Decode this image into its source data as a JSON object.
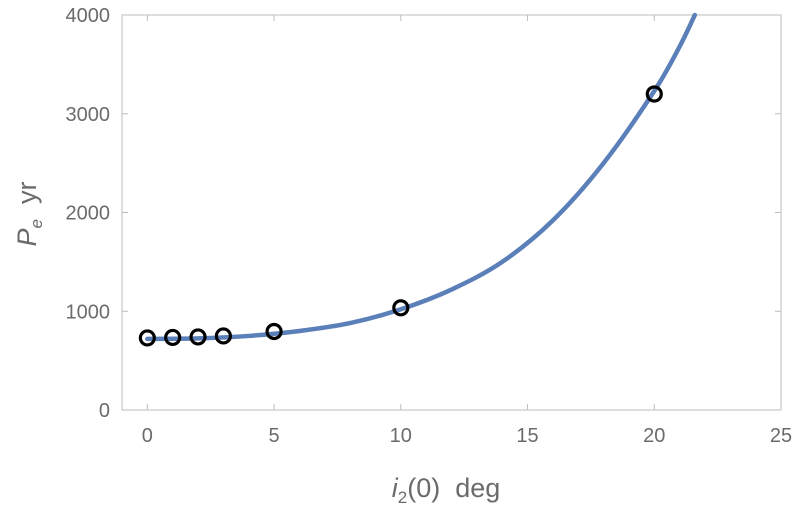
{
  "chart_data": {
    "type": "scatter",
    "xlabel": {
      "main": "i",
      "sub": "2",
      "rest": "(0)  deg"
    },
    "ylabel": {
      "main": "P",
      "sub": "e",
      "rest": "  yr"
    },
    "xlim": [
      -1.0,
      25.0
    ],
    "ylim": [
      0,
      4000
    ],
    "x_ticks": [
      0,
      5,
      10,
      15,
      20,
      25
    ],
    "y_ticks": [
      0,
      1000,
      2000,
      3000,
      4000
    ],
    "grid": false,
    "series": [
      {
        "kind": "points",
        "marker": "open-circle",
        "color": "#000000",
        "x": [
          0,
          1,
          2,
          3,
          5,
          10,
          20
        ],
        "y": [
          730,
          735,
          740,
          750,
          795,
          1035,
          3200
        ]
      },
      {
        "kind": "line",
        "color": "#5b7fb8",
        "x": [
          0,
          2,
          4,
          6,
          8,
          10,
          12,
          14,
          16,
          18,
          20,
          21,
          21.6
        ],
        "y": [
          720,
          725,
          750,
          800,
          880,
          1020,
          1220,
          1500,
          1920,
          2500,
          3230,
          3680,
          4000
        ]
      }
    ],
    "frame_color": "#bdbdbd"
  }
}
